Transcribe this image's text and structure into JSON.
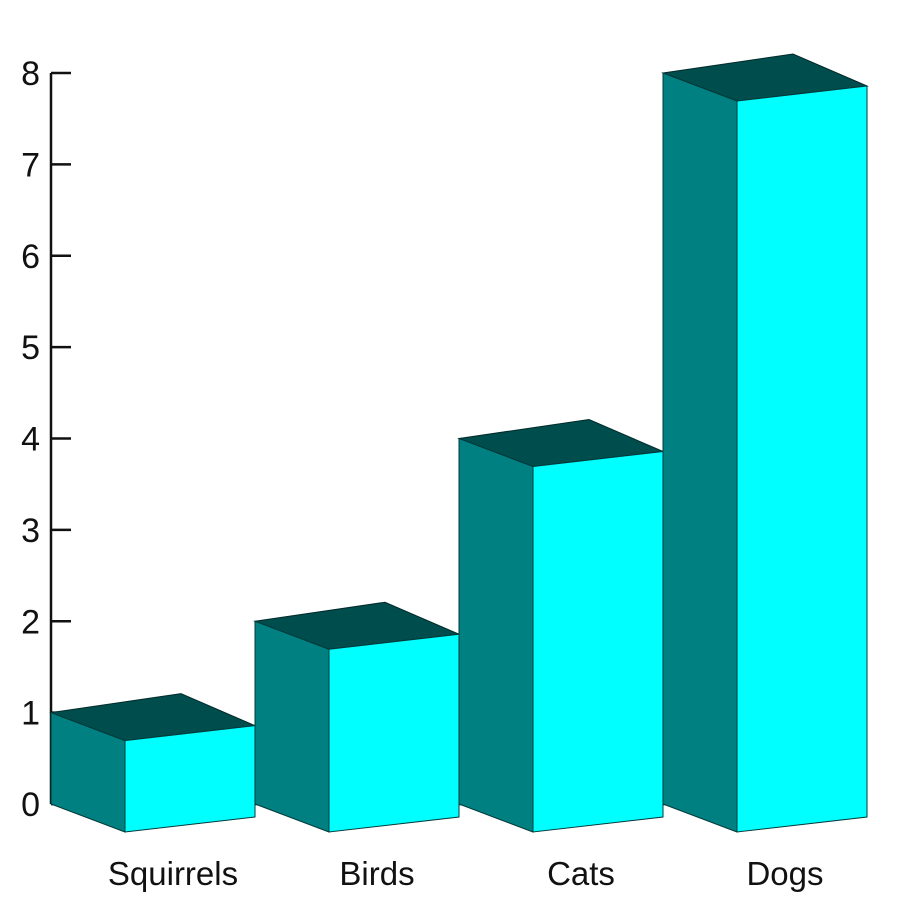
{
  "chart_data": {
    "type": "bar",
    "style": "3d",
    "categories": [
      "Squirrels",
      "Birds",
      "Cats",
      "Dogs"
    ],
    "values": [
      1,
      2,
      4,
      8
    ],
    "ylim": [
      0,
      8
    ],
    "yticks": [
      "0",
      "1",
      "2",
      "3",
      "4",
      "5",
      "6",
      "7",
      "8"
    ],
    "grid": false,
    "colors": {
      "front": "#00ffff",
      "side": "#008080",
      "top": "#004d4d",
      "axis": "#111111"
    }
  }
}
